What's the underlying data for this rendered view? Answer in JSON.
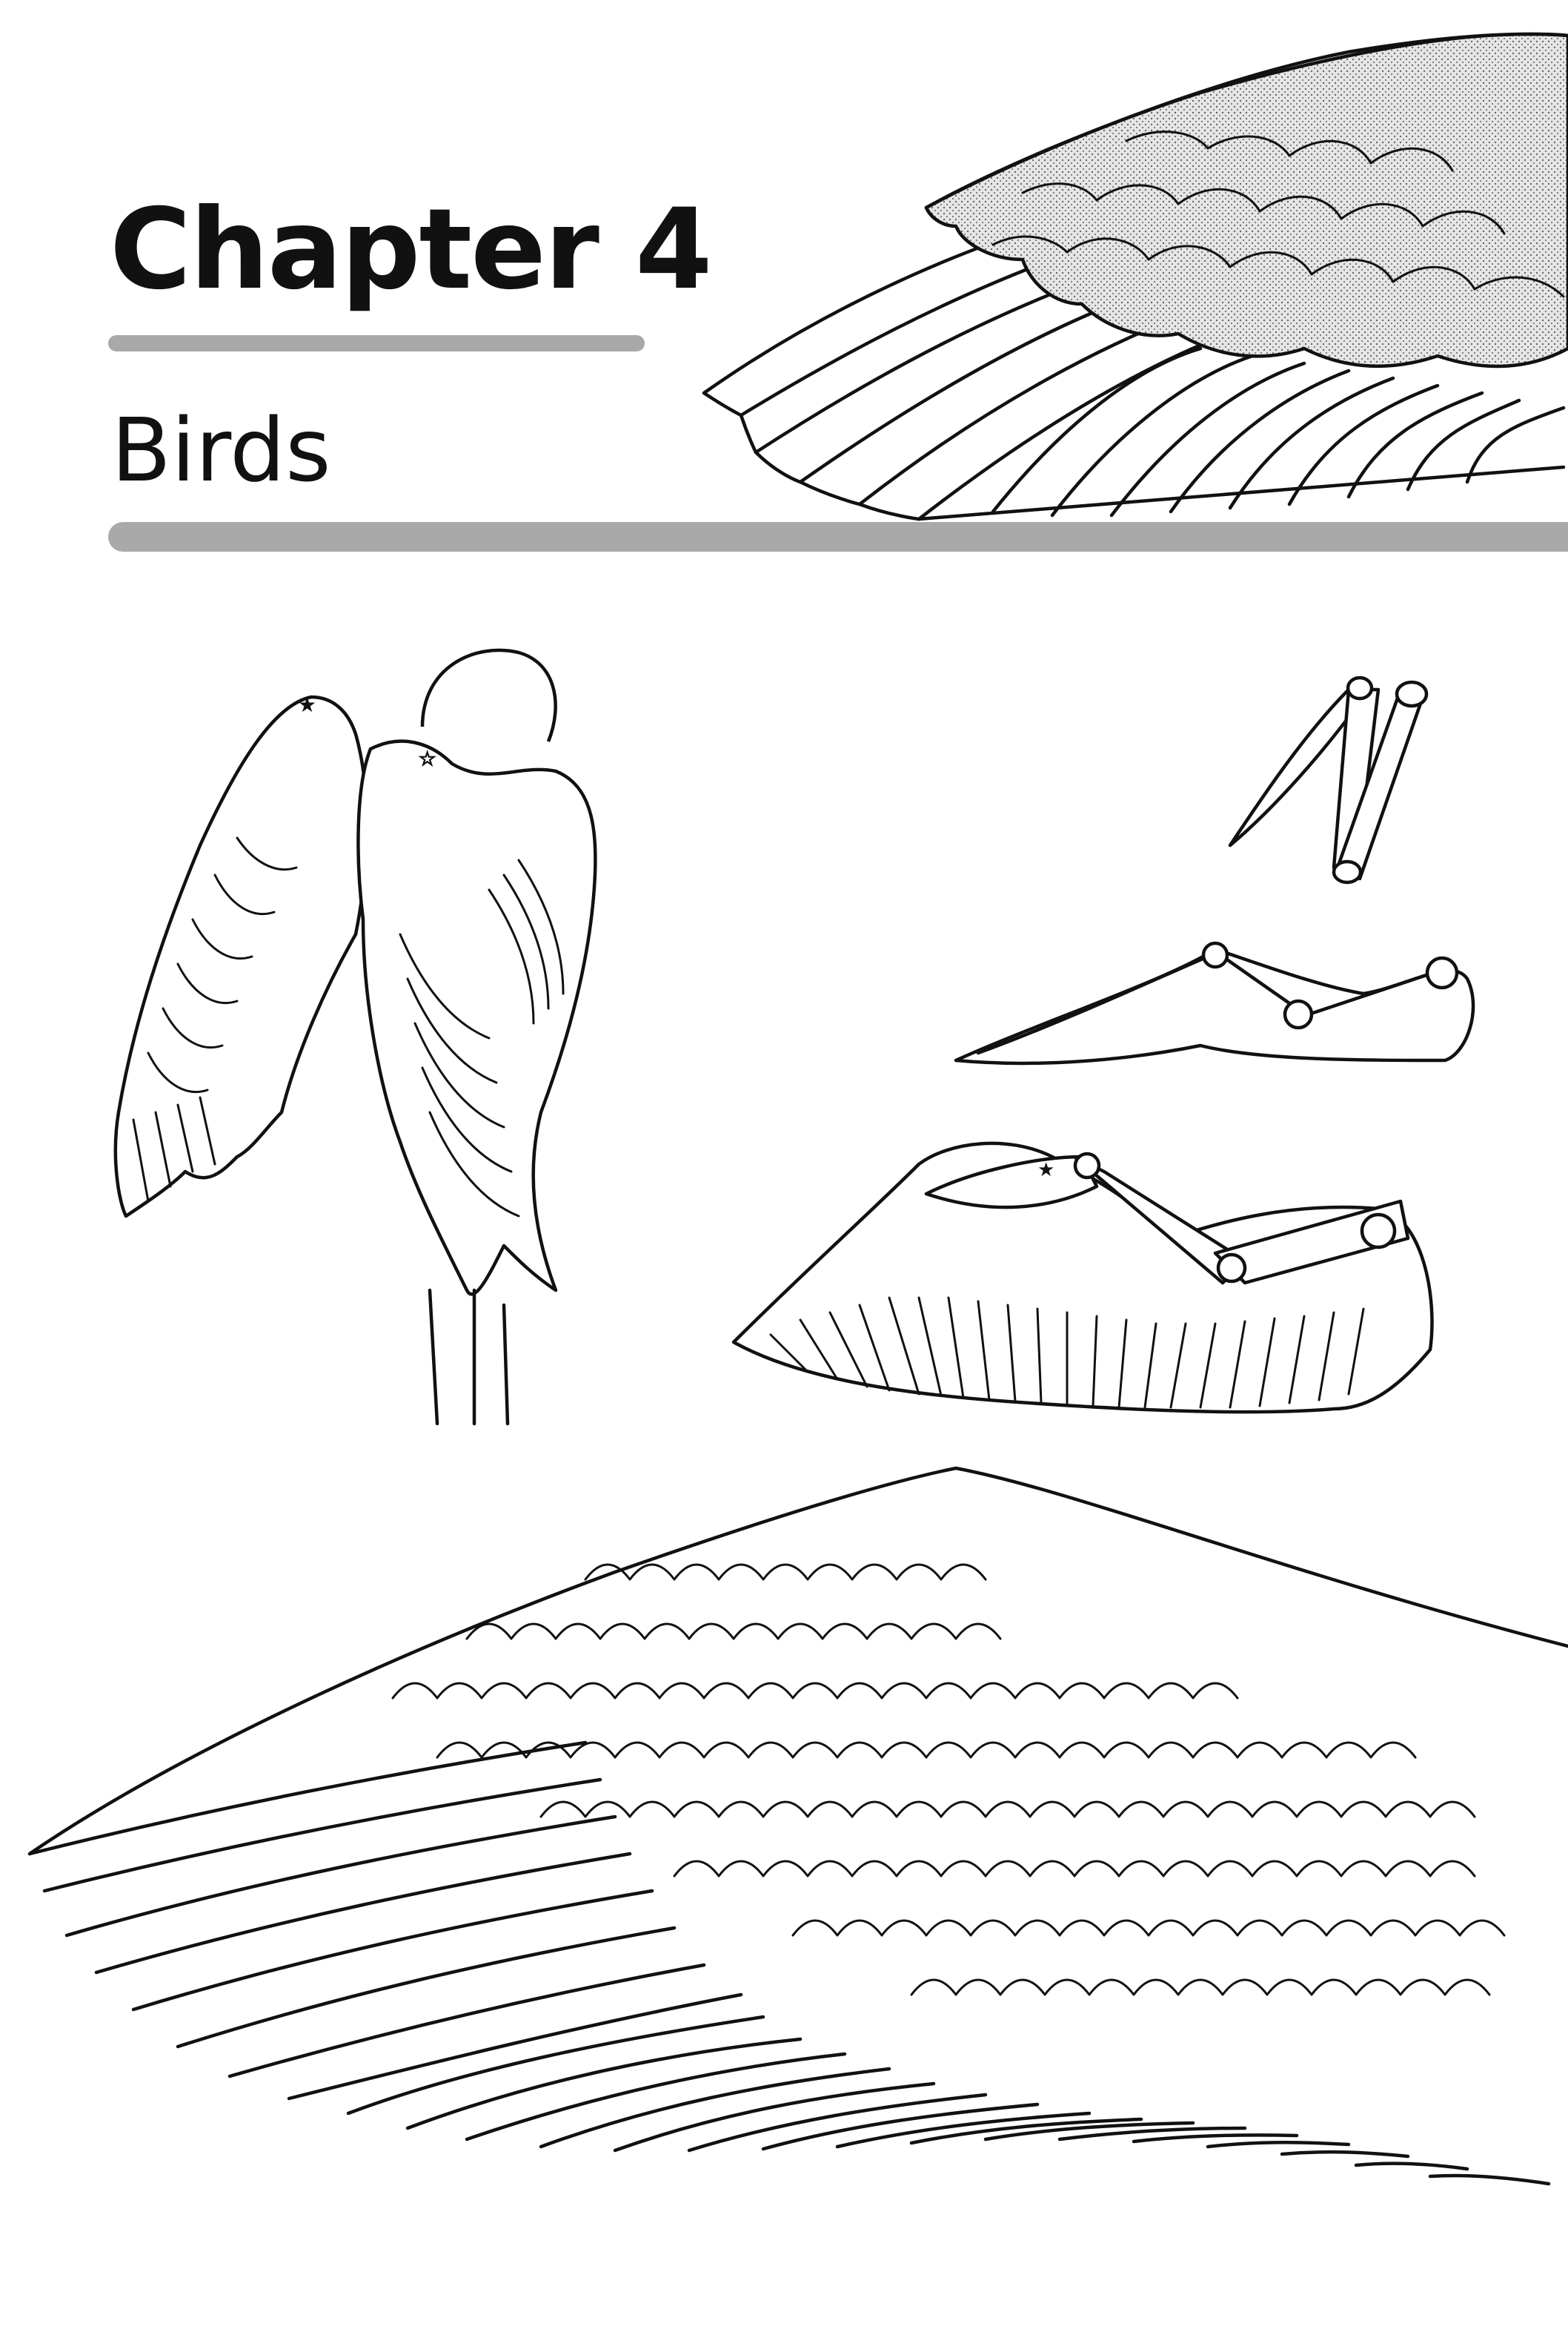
{
  "chapter": {
    "title": "Chapter 4",
    "subtitle": "Birds"
  },
  "illustrations": [
    {
      "name": "top-wing-illustration",
      "icon": "wing-icon"
    },
    {
      "name": "bird-back-view-illustration",
      "icon": "bird-icon"
    },
    {
      "name": "wing-bone-folded-illustration",
      "icon": "bone-icon"
    },
    {
      "name": "wing-bone-half-open-illustration",
      "icon": "bone-icon"
    },
    {
      "name": "wing-bone-with-feathers-illustration",
      "icon": "wing-icon"
    },
    {
      "name": "large-spread-wing-illustration",
      "icon": "wing-icon"
    }
  ],
  "colors": {
    "ink": "#111111",
    "rule": "#a9a9a9",
    "background": "#ffffff"
  }
}
